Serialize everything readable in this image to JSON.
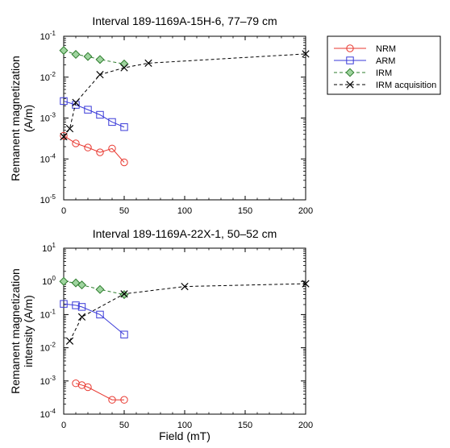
{
  "chart_data": [
    {
      "type": "line",
      "title": "Interval 189-1169A-15H-6, 77–79 cm",
      "xlabel": "",
      "ylabel_lines": [
        "Remanent magnetization",
        "(A/m)"
      ],
      "xlim": [
        0,
        200
      ],
      "ylim": [
        1e-05,
        0.1
      ],
      "yscale": "log",
      "x_ticks": [
        0,
        50,
        100,
        150,
        200
      ],
      "y_ticks": [
        {
          "value": 1e-05,
          "base": "10",
          "exp": "-5"
        },
        {
          "value": 0.0001,
          "base": "10",
          "exp": "-4"
        },
        {
          "value": 0.001,
          "base": "10",
          "exp": "-3"
        },
        {
          "value": 0.01,
          "base": "10",
          "exp": "-2"
        },
        {
          "value": 0.1,
          "base": "10",
          "exp": "-1"
        }
      ],
      "grid": false,
      "series": [
        {
          "name": "NRM",
          "color": "#e8372f",
          "marker": "circle",
          "dashed": false,
          "x": [
            0,
            10,
            20,
            30,
            40,
            50
          ],
          "y": [
            0.00037,
            0.00024,
            0.00019,
            0.000145,
            0.00018,
            8.25e-05
          ]
        },
        {
          "name": "ARM",
          "color": "#3a3ad8",
          "marker": "square",
          "dashed": false,
          "x": [
            0,
            10,
            20,
            30,
            40,
            50
          ],
          "y": [
            0.0026,
            0.0021,
            0.0016,
            0.0012,
            0.0008,
            0.0006
          ]
        },
        {
          "name": "IRM",
          "color": "#2e7d2e",
          "marker": "diamond",
          "dashed": true,
          "x": [
            0,
            10,
            20,
            30,
            50
          ],
          "y": [
            0.045,
            0.036,
            0.032,
            0.027,
            0.021
          ]
        },
        {
          "name": "IRM acquisition",
          "color": "#000000",
          "marker": "x",
          "dashed": true,
          "x": [
            0,
            5,
            10,
            30,
            50,
            70,
            200
          ],
          "y": [
            0.00035,
            0.00055,
            0.0024,
            0.0115,
            0.017,
            0.022,
            0.037
          ]
        }
      ]
    },
    {
      "type": "line",
      "title": "Interval 189-1169A-22X-1, 50–52  cm",
      "xlabel": "Field (mT)",
      "ylabel_lines": [
        "Remanent magnetization",
        "intensity (A/m)"
      ],
      "xlim": [
        0,
        200
      ],
      "ylim": [
        0.0001,
        10
      ],
      "yscale": "log",
      "x_ticks": [
        0,
        50,
        100,
        150,
        200
      ],
      "y_ticks": [
        {
          "value": 0.0001,
          "base": "10",
          "exp": "-4"
        },
        {
          "value": 0.001,
          "base": "10",
          "exp": "-3"
        },
        {
          "value": 0.01,
          "base": "10",
          "exp": "-2"
        },
        {
          "value": 0.1,
          "base": "10",
          "exp": "-1"
        },
        {
          "value": 1,
          "base": "10",
          "exp": "0"
        },
        {
          "value": 10,
          "base": "10",
          "exp": "1"
        }
      ],
      "grid": false,
      "series": [
        {
          "name": "NRM",
          "color": "#e8372f",
          "marker": "circle",
          "dashed": false,
          "x": [
            10,
            15,
            20,
            40,
            50
          ],
          "y": [
            0.00085,
            0.00075,
            0.00065,
            0.00027,
            0.00027
          ]
        },
        {
          "name": "ARM",
          "color": "#3a3ad8",
          "marker": "square",
          "dashed": false,
          "x": [
            0,
            10,
            15,
            30,
            50
          ],
          "y": [
            0.21,
            0.19,
            0.17,
            0.1,
            0.025
          ]
        },
        {
          "name": "IRM",
          "color": "#2e7d2e",
          "marker": "diamond",
          "dashed": true,
          "x": [
            0,
            10,
            15,
            30,
            50
          ],
          "y": [
            1.0,
            0.9,
            0.78,
            0.57,
            0.4
          ]
        },
        {
          "name": "IRM acquisition",
          "color": "#000000",
          "marker": "x",
          "dashed": true,
          "x": [
            5,
            15,
            50,
            100,
            200
          ],
          "y": [
            0.016,
            0.085,
            0.42,
            0.7,
            0.85
          ]
        }
      ]
    }
  ],
  "legend": {
    "placement": "right-of-top-chart",
    "entries": [
      {
        "label": "NRM",
        "color": "#e8372f",
        "marker": "circle",
        "dashed": false
      },
      {
        "label": "ARM",
        "color": "#3a3ad8",
        "marker": "square",
        "dashed": false
      },
      {
        "label": "IRM",
        "color": "#2e7d2e",
        "marker": "diamond",
        "dashed": true
      },
      {
        "label": "IRM acquisition",
        "color": "#000000",
        "marker": "x",
        "dashed": true
      }
    ]
  }
}
